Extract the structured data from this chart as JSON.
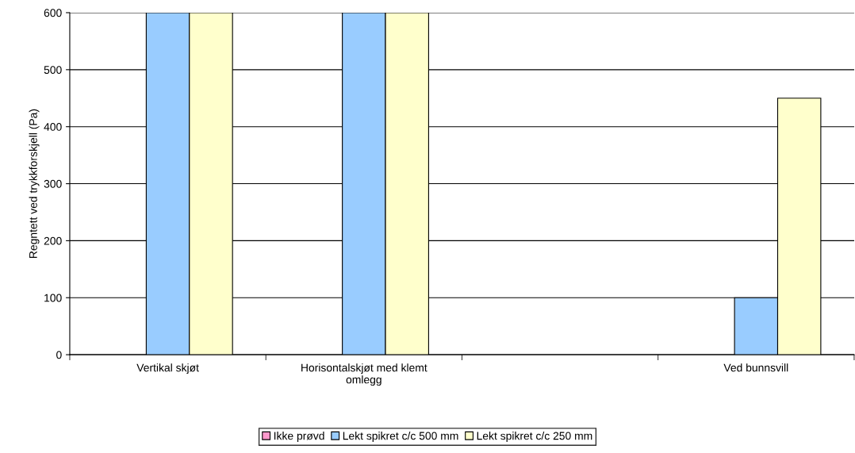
{
  "chart_data": {
    "type": "bar",
    "ylabel": "Regntett ved trykkforskjell (Pa)",
    "categories": [
      "Vertikal skjøt",
      "Horisontalskjøt med klemt omlegg",
      null,
      "Ved bunnsvill"
    ],
    "series": [
      {
        "name": "Ikke prøvd",
        "color": "#ff99cc",
        "values": [
          null,
          null,
          null,
          null
        ]
      },
      {
        "name": "Lekt spikret c/c 500 mm",
        "color": "#99ccff",
        "values": [
          600,
          600,
          null,
          100
        ]
      },
      {
        "name": "Lekt spikret c/c 250 mm",
        "color": "#ffffcc",
        "values": [
          600,
          600,
          null,
          450
        ]
      }
    ],
    "ylim": [
      0,
      600
    ],
    "yticks": [
      0,
      100,
      200,
      300,
      400,
      500,
      600
    ],
    "grid": "y",
    "legend": "bottom"
  }
}
